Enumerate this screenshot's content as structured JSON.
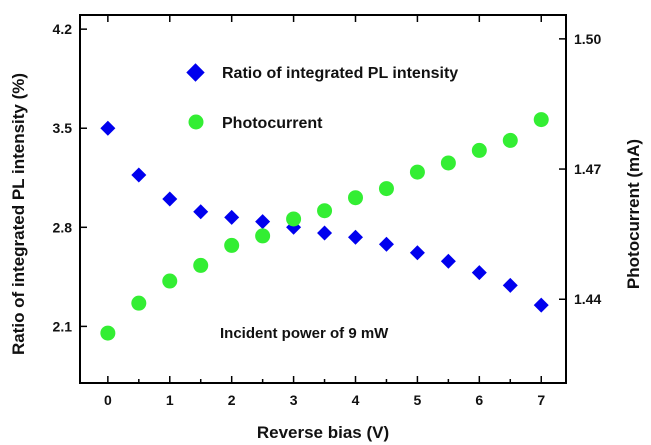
{
  "chart_data": {
    "type": "scatter",
    "xlabel": "Reverse bias (V)",
    "ylabel_left": "Ratio of integrated PL intensity (%)",
    "ylabel_right": "Photocurrent (mA)",
    "xlim": [
      -0.45,
      7.4
    ],
    "ylim_left": [
      1.7,
      4.3
    ],
    "ylim_right": [
      1.4207,
      1.5055
    ],
    "x_ticks": [
      "0",
      "1",
      "2",
      "3",
      "4",
      "5",
      "6",
      "7"
    ],
    "y_left_ticks": [
      "2.1",
      "2.8",
      "3.5",
      "4.2"
    ],
    "y_right_ticks": [
      "1.44",
      "1.47",
      "1.50"
    ],
    "annotation": "Incident power of 9 mW",
    "legend_position": "top-center",
    "series": [
      {
        "name": "Ratio of integrated PL intensity",
        "axis": "left",
        "marker": "diamond",
        "color": "#0000ee",
        "x": [
          0,
          0.5,
          1,
          1.5,
          2,
          2.5,
          3,
          3.5,
          4,
          4.5,
          5,
          5.5,
          6,
          6.5,
          7
        ],
        "y": [
          3.5,
          3.17,
          3.0,
          2.91,
          2.87,
          2.84,
          2.8,
          2.76,
          2.73,
          2.68,
          2.62,
          2.56,
          2.48,
          2.39,
          2.25
        ]
      },
      {
        "name": "Photocurrent",
        "axis": "right",
        "marker": "circle",
        "color": "#33ee33",
        "x": [
          0,
          0.5,
          1,
          1.5,
          2,
          2.5,
          3,
          3.5,
          4,
          4.5,
          5,
          5.5,
          6,
          6.5,
          7
        ],
        "y": [
          1.4322,
          1.4391,
          1.4442,
          1.4478,
          1.4524,
          1.4546,
          1.4585,
          1.4604,
          1.4634,
          1.4655,
          1.4693,
          1.4714,
          1.4743,
          1.4766,
          1.4814
        ]
      }
    ]
  }
}
